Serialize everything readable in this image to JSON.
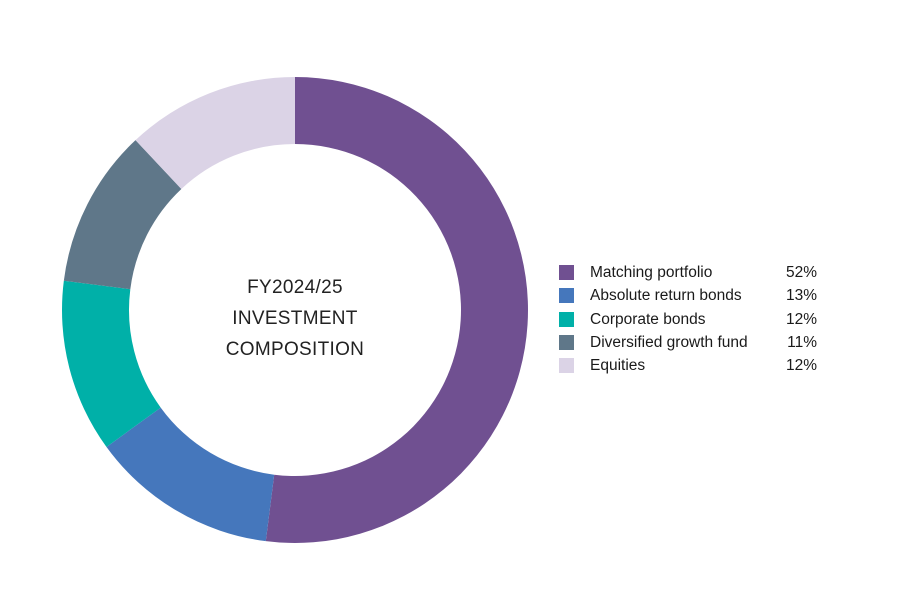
{
  "chart_data": {
    "type": "pie",
    "center_label": [
      "FY2024/25",
      "INVESTMENT",
      "COMPOSITION"
    ],
    "categories": [
      "Matching portfolio",
      "Absolute return bonds",
      "Corporate bonds",
      "Diversified growth fund",
      "Equities"
    ],
    "values": [
      52,
      13,
      12,
      11,
      12
    ],
    "value_labels": [
      "52%",
      "13%",
      "12%",
      "11%",
      "12%"
    ],
    "colors": [
      "#705091",
      "#4577BC",
      "#00B0A8",
      "#5F7789",
      "#DBD3E6"
    ],
    "legend_position": "right",
    "style": "donut"
  }
}
